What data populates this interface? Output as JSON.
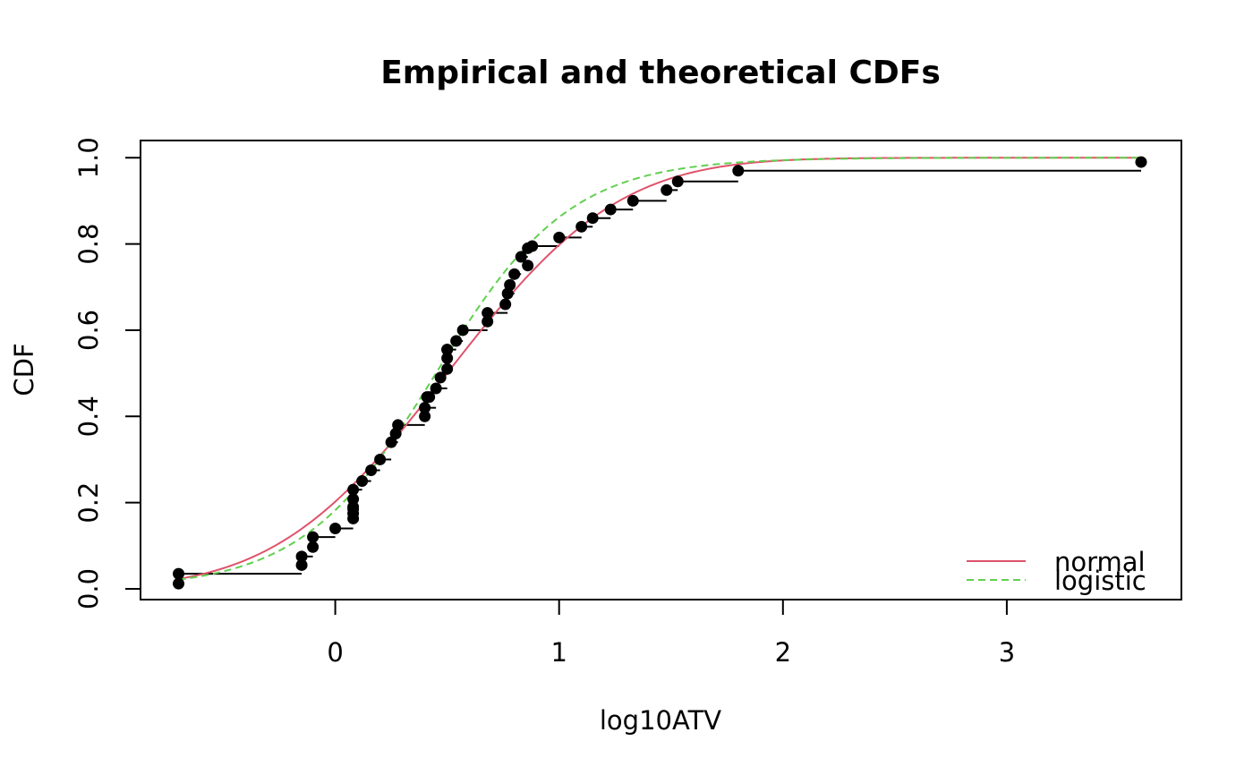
{
  "chart_data": {
    "type": "scatter",
    "title": "Empirical and theoretical CDFs",
    "xlabel": "log10ATV",
    "ylabel": "CDF",
    "xlim": [
      -0.87,
      3.78
    ],
    "ylim": [
      -0.025,
      1.04
    ],
    "xticks": [
      0,
      1,
      2,
      3
    ],
    "xtick_labels": [
      "0",
      "1",
      "2",
      "3"
    ],
    "yticks": [
      0.0,
      0.2,
      0.4,
      0.6,
      0.8,
      1.0
    ],
    "ytick_labels": [
      "0.0",
      "0.2",
      "0.4",
      "0.6",
      "0.8",
      "1.0"
    ],
    "grid": false,
    "legend_position": "bottom-right",
    "empirical": {
      "x": [
        -0.7,
        -0.15,
        -0.1,
        0.0,
        0.08,
        0.12,
        0.16,
        0.2,
        0.25,
        0.28,
        0.4,
        0.45,
        0.5,
        0.54,
        0.57,
        0.68,
        0.77,
        0.8,
        0.83,
        0.86,
        0.88,
        1.0,
        1.1,
        1.15,
        1.23,
        1.33,
        1.48,
        1.53,
        1.8,
        3.6
      ],
      "y": [
        0.035,
        0.075,
        0.12,
        0.14,
        0.23,
        0.25,
        0.275,
        0.3,
        0.34,
        0.38,
        0.42,
        0.465,
        0.555,
        0.575,
        0.6,
        0.64,
        0.685,
        0.73,
        0.77,
        0.79,
        0.795,
        0.815,
        0.84,
        0.86,
        0.88,
        0.9,
        0.925,
        0.945,
        0.97,
        0.99
      ]
    },
    "extra_points": {
      "x": [
        -0.7,
        -0.15,
        -0.1,
        0.08,
        0.08,
        0.08,
        0.08,
        0.08,
        0.27,
        0.4,
        0.41,
        0.42,
        0.47,
        0.5,
        0.5,
        0.5,
        0.68,
        0.76,
        0.78,
        0.86
      ],
      "y": [
        0.012,
        0.055,
        0.097,
        0.163,
        0.185,
        0.208,
        0.19,
        0.175,
        0.36,
        0.4,
        0.445,
        0.445,
        0.49,
        0.51,
        0.535,
        0.555,
        0.62,
        0.66,
        0.705,
        0.75
      ]
    },
    "series": [
      {
        "name": "normal",
        "distribution": "normal",
        "mean": 0.5,
        "sd": 0.6,
        "color": "#DF536B",
        "linestyle": "solid"
      },
      {
        "name": "logistic",
        "distribution": "logistic",
        "location": 0.45,
        "scale": 0.3,
        "color": "#61D04F",
        "linestyle": "dashed"
      }
    ],
    "colors": {
      "points": "#000000",
      "steps": "#000000"
    }
  }
}
